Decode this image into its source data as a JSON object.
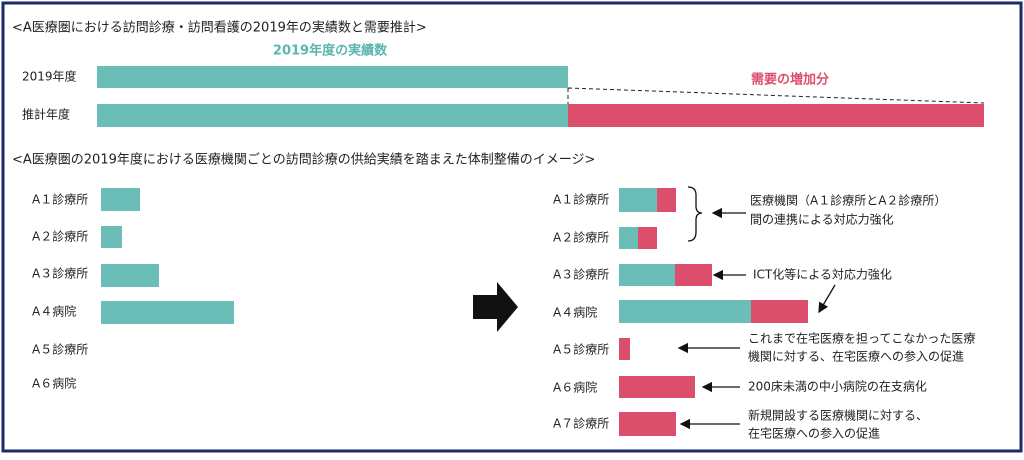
{
  "section1": {
    "title": "<A医療圏における訪問診療・訪問看護の2019年の実績数と需要推計>",
    "actual_label": "2019年度の実績数",
    "increase_label": "需要の増加分",
    "rows": [
      "2019年度",
      "推計年度"
    ]
  },
  "section2": {
    "title": "<A医療圏の2019年度における医療機関ごとの訪問診療の供給実績を踏まえた体制整備のイメージ>",
    "before": [
      "A１診療所",
      "A２診療所",
      "A３診療所",
      "A４病院",
      "A５診療所",
      "A６病院"
    ],
    "after": [
      "A１診療所",
      "A２診療所",
      "A３診療所",
      "A４病院",
      "A５診療所",
      "A６病院",
      "A７診療所"
    ],
    "notes": [
      [
        "医療機関（A１診療所とA２診療所）",
        "間の連携による対応力強化"
      ],
      [
        "ICT化等による対応力強化"
      ],
      [
        "これまで在宅医療を担ってこなかった医療",
        "機関に対する、在宅医療への参入の促進"
      ],
      [
        "200床未満の中小病院の在支病化"
      ],
      [
        "新規開設する医療機関に対する、",
        "在宅医療への参入の促進"
      ]
    ]
  }
}
